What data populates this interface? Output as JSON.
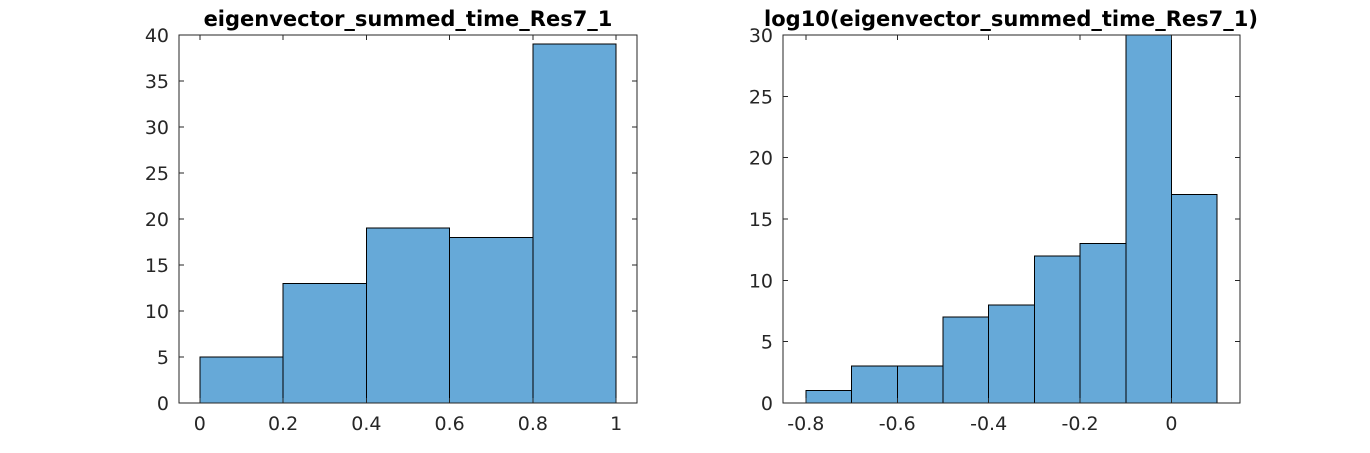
{
  "chart_data": [
    {
      "type": "bar",
      "title": "eigenvector_summed_time_Res7_1",
      "xlabel": "",
      "ylabel": "",
      "bin_edges": [
        0,
        0.2,
        0.4,
        0.6,
        0.8,
        1.0
      ],
      "values": [
        5,
        13,
        19,
        18,
        39
      ],
      "xlim": [
        -0.05,
        1.05
      ],
      "ylim": [
        0,
        40
      ],
      "xticks": [
        0,
        0.2,
        0.4,
        0.6,
        0.8,
        1
      ],
      "xtick_labels": [
        "0",
        "0.2",
        "0.4",
        "0.6",
        "0.8",
        "1"
      ],
      "yticks": [
        0,
        5,
        10,
        15,
        20,
        25,
        30,
        35,
        40
      ],
      "ytick_labels": [
        "0",
        "5",
        "10",
        "15",
        "20",
        "25",
        "30",
        "35",
        "40"
      ],
      "bar_color": "#66a9d8",
      "grid": false
    },
    {
      "type": "bar",
      "title": "log10(eigenvector_summed_time_Res7_1)",
      "xlabel": "",
      "ylabel": "",
      "bin_edges": [
        -0.8,
        -0.7,
        -0.6,
        -0.5,
        -0.4,
        -0.3,
        -0.2,
        -0.1,
        0.0,
        0.1
      ],
      "values": [
        1,
        3,
        3,
        7,
        8,
        12,
        13,
        30,
        17
      ],
      "xlim": [
        -0.85,
        0.15
      ],
      "ylim": [
        0,
        30
      ],
      "xticks": [
        -0.8,
        -0.6,
        -0.4,
        -0.2,
        0
      ],
      "xtick_labels": [
        "-0.8",
        "-0.6",
        "-0.4",
        "-0.2",
        "0"
      ],
      "yticks": [
        0,
        5,
        10,
        15,
        20,
        25,
        30
      ],
      "ytick_labels": [
        "0",
        "5",
        "10",
        "15",
        "20",
        "25",
        "30"
      ],
      "bar_color": "#66a9d8",
      "grid": false
    }
  ]
}
